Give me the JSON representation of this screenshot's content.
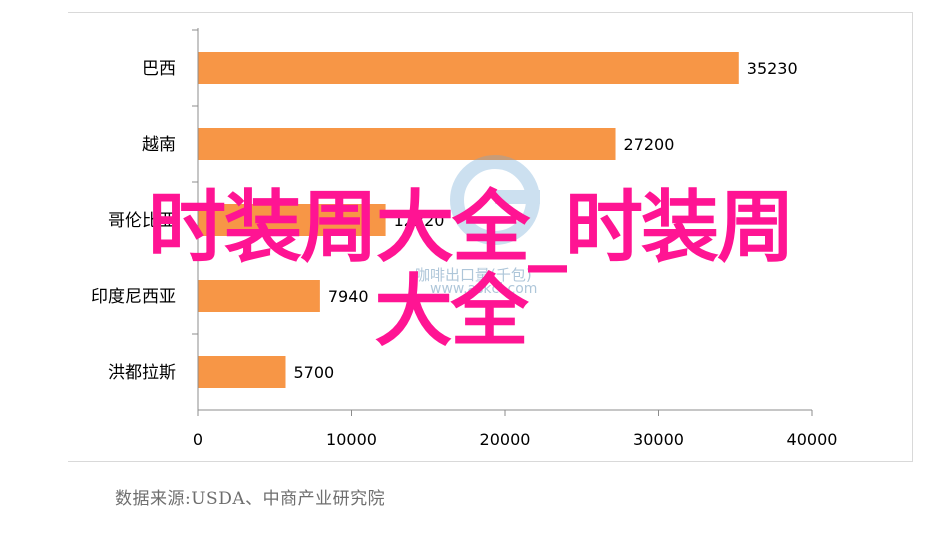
{
  "chart_data": {
    "type": "bar",
    "orientation": "horizontal",
    "categories": [
      "巴西",
      "越南",
      "哥伦比亚",
      "印度尼西亚",
      "洪都拉斯"
    ],
    "values": [
      35230,
      27200,
      12220,
      7940,
      5700
    ],
    "value_labels": [
      "35230",
      "27200",
      "12220",
      "7940",
      "5700"
    ],
    "xlim": [
      0,
      40000
    ],
    "xticks": [
      0,
      10000,
      20000,
      30000,
      40000
    ],
    "xtick_labels": [
      "0",
      "10000",
      "20000",
      "30000",
      "40000"
    ],
    "bar_color": "#f79646",
    "grid": false,
    "source": "数据来源:USDA、中商产业研究院"
  },
  "overlay": {
    "line1": "时装周大全_时装周",
    "line2": "大全",
    "color": "#ff1493"
  },
  "watermark": {
    "text": "咖啡出口量(千包)",
    "url": "www.askci.com"
  }
}
